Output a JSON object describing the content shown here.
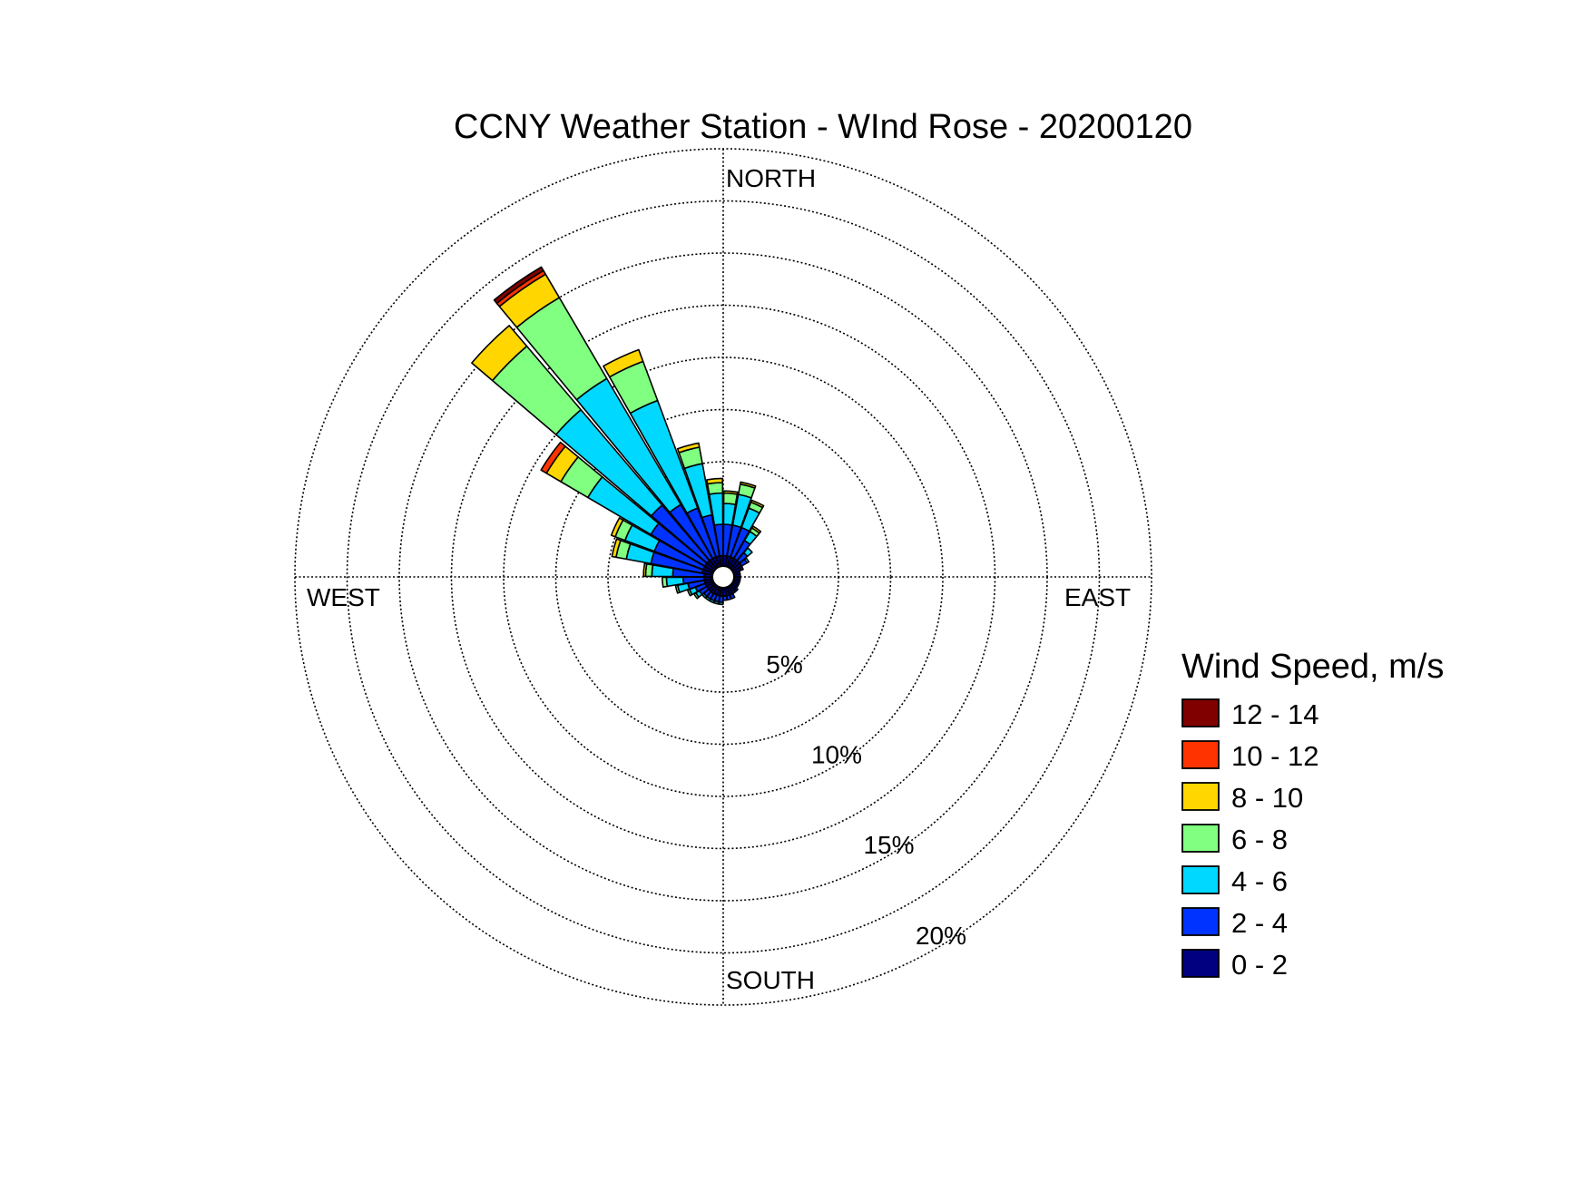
{
  "chart_data": {
    "type": "windrose",
    "title": "CCNY Weather Station - WInd Rose - 20200120",
    "direction_labels": {
      "north": "NORTH",
      "east": "EAST",
      "south": "SOUTH",
      "west": "WEST"
    },
    "radial_unit": "%",
    "radial_max": 20,
    "radial_ticks": [
      5,
      10,
      15,
      20
    ],
    "radial_tick_labels": [
      "5%",
      "10%",
      "15%",
      "20%"
    ],
    "legend": {
      "title": "Wind Speed, m/s",
      "placement": "right",
      "bins": [
        {
          "label": "12 - 14",
          "color": "#800000"
        },
        {
          "label": "10 - 12",
          "color": "#ff3300"
        },
        {
          "label": "8 - 10",
          "color": "#ffd600"
        },
        {
          "label": "6 - 8",
          "color": "#80ff80"
        },
        {
          "label": "4 - 6",
          "color": "#00d8ff"
        },
        {
          "label": "2 - 4",
          "color": "#0033ff"
        },
        {
          "label": "0 - 2",
          "color": "#000080"
        }
      ]
    },
    "bin_order_inner_to_outer": [
      "0 - 2",
      "2 - 4",
      "4 - 6",
      "6 - 8",
      "8 - 10",
      "10 - 12",
      "12 - 14"
    ],
    "sectors": [
      {
        "direction_deg": 325,
        "values": [
          0.5,
          3.0,
          7.0,
          4.5,
          1.3,
          0.2,
          0.2
        ]
      },
      {
        "direction_deg": 315,
        "values": [
          0.5,
          3.5,
          6.0,
          4.0,
          1.3,
          0,
          0
        ]
      },
      {
        "direction_deg": 305,
        "values": [
          0.5,
          3.0,
          3.5,
          1.5,
          0.8,
          0.3,
          0
        ]
      },
      {
        "direction_deg": 335,
        "values": [
          0.5,
          2.5,
          5.5,
          2.0,
          0.6,
          0,
          0
        ]
      },
      {
        "direction_deg": 345,
        "values": [
          0.5,
          2.0,
          2.5,
          0.8,
          0.2,
          0,
          0
        ]
      },
      {
        "direction_deg": 355,
        "values": [
          0.5,
          1.5,
          1.5,
          0.5,
          0.2,
          0,
          0
        ]
      },
      {
        "direction_deg": 5,
        "values": [
          0.5,
          1.5,
          1.0,
          0.5,
          0.1,
          0,
          0
        ]
      },
      {
        "direction_deg": 15,
        "values": [
          0.5,
          1.5,
          1.5,
          0.5,
          0.1,
          0,
          0
        ]
      },
      {
        "direction_deg": 25,
        "values": [
          0.5,
          1.5,
          1.0,
          0.3,
          0.1,
          0,
          0
        ]
      },
      {
        "direction_deg": 35,
        "values": [
          0.5,
          1.0,
          0.5,
          0.2,
          0.1,
          0,
          0
        ]
      },
      {
        "direction_deg": 45,
        "values": [
          0.5,
          0.5,
          0.3,
          0,
          0,
          0,
          0
        ]
      },
      {
        "direction_deg": 55,
        "values": [
          0.5,
          0.3,
          0.1,
          0,
          0,
          0,
          0
        ]
      },
      {
        "direction_deg": 65,
        "values": [
          0.4,
          0.1,
          0,
          0,
          0,
          0,
          0
        ]
      },
      {
        "direction_deg": 75,
        "values": [
          0.3,
          0,
          0,
          0,
          0,
          0,
          0
        ]
      },
      {
        "direction_deg": 85,
        "values": [
          0.3,
          0,
          0,
          0,
          0,
          0,
          0
        ]
      },
      {
        "direction_deg": 95,
        "values": [
          0.3,
          0,
          0,
          0,
          0,
          0,
          0
        ]
      },
      {
        "direction_deg": 105,
        "values": [
          0.3,
          0,
          0,
          0,
          0,
          0,
          0
        ]
      },
      {
        "direction_deg": 115,
        "values": [
          0.3,
          0,
          0,
          0,
          0,
          0,
          0
        ]
      },
      {
        "direction_deg": 125,
        "values": [
          0.3,
          0,
          0,
          0,
          0,
          0,
          0
        ]
      },
      {
        "direction_deg": 135,
        "values": [
          0.3,
          0.1,
          0,
          0,
          0,
          0,
          0
        ]
      },
      {
        "direction_deg": 145,
        "values": [
          0.3,
          0.1,
          0,
          0,
          0,
          0,
          0
        ]
      },
      {
        "direction_deg": 155,
        "values": [
          0.4,
          0.2,
          0,
          0,
          0,
          0,
          0
        ]
      },
      {
        "direction_deg": 165,
        "values": [
          0.4,
          0.2,
          0,
          0,
          0,
          0,
          0
        ]
      },
      {
        "direction_deg": 175,
        "values": [
          0.4,
          0.2,
          0,
          0,
          0,
          0,
          0
        ]
      },
      {
        "direction_deg": 185,
        "values": [
          0.4,
          0.3,
          0.1,
          0,
          0,
          0,
          0
        ]
      },
      {
        "direction_deg": 195,
        "values": [
          0.4,
          0.3,
          0.1,
          0,
          0,
          0,
          0
        ]
      },
      {
        "direction_deg": 205,
        "values": [
          0.4,
          0.3,
          0.1,
          0,
          0,
          0,
          0
        ]
      },
      {
        "direction_deg": 215,
        "values": [
          0.4,
          0.3,
          0.1,
          0,
          0,
          0,
          0
        ]
      },
      {
        "direction_deg": 225,
        "values": [
          0.4,
          0.3,
          0.1,
          0,
          0,
          0,
          0
        ]
      },
      {
        "direction_deg": 235,
        "values": [
          0.4,
          0.4,
          0.2,
          0.1,
          0,
          0,
          0
        ]
      },
      {
        "direction_deg": 245,
        "values": [
          0.4,
          0.5,
          0.3,
          0.1,
          0,
          0,
          0
        ]
      },
      {
        "direction_deg": 255,
        "values": [
          0.4,
          0.8,
          0.5,
          0.1,
          0,
          0,
          0
        ]
      },
      {
        "direction_deg": 265,
        "values": [
          0.4,
          1.0,
          0.8,
          0.2,
          0,
          0,
          0
        ]
      },
      {
        "direction_deg": 275,
        "values": [
          0.4,
          1.5,
          1.0,
          0.3,
          0.1,
          0,
          0
        ]
      },
      {
        "direction_deg": 285,
        "values": [
          0.5,
          2.5,
          1.2,
          0.5,
          0.2,
          0,
          0
        ]
      },
      {
        "direction_deg": 295,
        "values": [
          0.5,
          2.5,
          1.5,
          0.5,
          0.2,
          0,
          0
        ]
      }
    ]
  }
}
